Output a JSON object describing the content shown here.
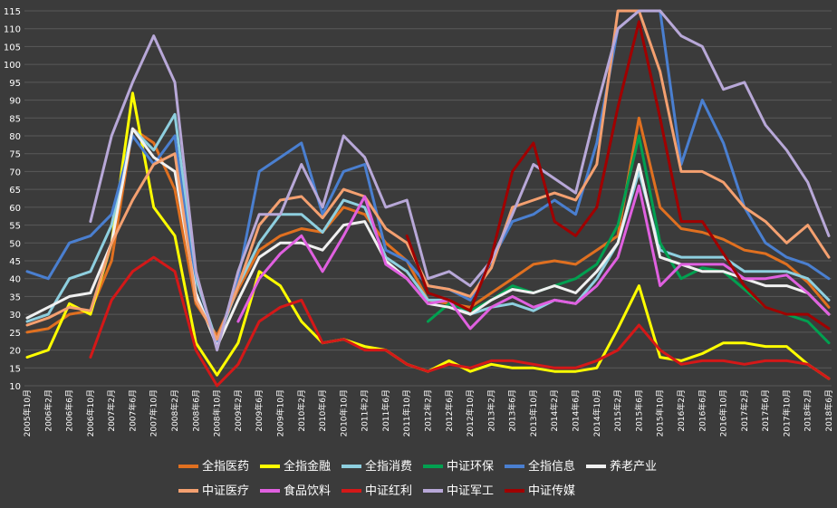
{
  "chart_data": {
    "type": "line",
    "title": "",
    "xlabel": "",
    "ylabel": "",
    "ylim": [
      10,
      115
    ],
    "yticks": [
      10,
      15,
      20,
      25,
      30,
      35,
      40,
      45,
      50,
      55,
      60,
      65,
      70,
      75,
      80,
      85,
      90,
      95,
      100,
      105,
      110,
      115
    ],
    "grid": true,
    "legend_position": "bottom",
    "categories": [
      "2005年10月",
      "2006年2月",
      "2006年6月",
      "2006年10月",
      "2007年2月",
      "2007年6月",
      "2007年10月",
      "2008年2月",
      "2008年6月",
      "2008年10月",
      "2009年2月",
      "2009年6月",
      "2009年10月",
      "2010年2月",
      "2010年6月",
      "2010年10月",
      "2011年2月",
      "2011年6月",
      "2011年10月",
      "2012年2月",
      "2012年6月",
      "2012年10月",
      "2013年2月",
      "2013年6月",
      "2013年10月",
      "2014年2月",
      "2014年6月",
      "2014年10月",
      "2015年2月",
      "2015年6月",
      "2015年10月",
      "2016年2月",
      "2016年6月",
      "2016年10月",
      "2017年2月",
      "2017年6月",
      "2017年10月",
      "2018年2月",
      "2018年6月"
    ],
    "series": [
      {
        "name": "全指医药",
        "color": "#e07020",
        "values": [
          null,
          null,
          null,
          null,
          null,
          null,
          null,
          null,
          null,
          null,
          null,
          null,
          null,
          null,
          null,
          null,
          null,
          null,
          null,
          null,
          null,
          null,
          null,
          null,
          null,
          null,
          null,
          null,
          null,
          null,
          null,
          null,
          null,
          null,
          null,
          null,
          null,
          null,
          null
        ],
        "values_lr": [
          25,
          26,
          30,
          31,
          45,
          82,
          78,
          65,
          33,
          24,
          37,
          48,
          52,
          54,
          53,
          60,
          58,
          50,
          45,
          34,
          33,
          32,
          36,
          40,
          44,
          45,
          44,
          48,
          52,
          85,
          60,
          54,
          53,
          51,
          48,
          47,
          44,
          39,
          32
        ]
      },
      {
        "name": "全指金融",
        "color": "#ffff00",
        "values": [
          18,
          20,
          33,
          30,
          50,
          92,
          60,
          52,
          22,
          13,
          22,
          42,
          38,
          28,
          22,
          23,
          21,
          20,
          16,
          14,
          17,
          14,
          16,
          15,
          15,
          14,
          14,
          15,
          26,
          38,
          18,
          17,
          19,
          22,
          22,
          21,
          21,
          16,
          12
        ]
      },
      {
        "name": "全指消费",
        "color": "#8ecfdf",
        "values": [
          28,
          30,
          40,
          42,
          55,
          82,
          76,
          86,
          40,
          22,
          38,
          50,
          58,
          58,
          53,
          62,
          60,
          46,
          42,
          34,
          34,
          30,
          32,
          33,
          31,
          34,
          33,
          40,
          50,
          70,
          48,
          46,
          46,
          46,
          42,
          42,
          42,
          40,
          34
        ]
      },
      {
        "name": "中证环保",
        "color": "#00a050",
        "values": [
          null,
          null,
          null,
          null,
          null,
          null,
          null,
          null,
          null,
          null,
          null,
          null,
          null,
          null,
          null,
          null,
          null,
          null,
          null,
          28,
          33,
          31,
          34,
          38,
          36,
          38,
          40,
          44,
          55,
          80,
          50,
          40,
          43,
          42,
          37,
          32,
          30,
          28,
          22
        ]
      },
      {
        "name": "全指信息",
        "color": "#4a7fd0",
        "values": [
          42,
          40,
          50,
          52,
          58,
          80,
          72,
          80,
          36,
          22,
          40,
          70,
          74,
          78,
          58,
          70,
          72,
          48,
          45,
          38,
          37,
          34,
          45,
          56,
          58,
          62,
          58,
          78,
          110,
          115,
          115,
          72,
          90,
          78,
          60,
          50,
          46,
          44,
          40
        ]
      },
      {
        "name": "养老产业",
        "color": "#f0f0f0",
        "values": [
          29,
          32,
          35,
          36,
          50,
          82,
          74,
          70,
          36,
          21,
          34,
          46,
          50,
          50,
          48,
          55,
          56,
          45,
          40,
          33,
          32,
          30,
          34,
          37,
          36,
          38,
          36,
          42,
          50,
          72,
          46,
          44,
          42,
          42,
          40,
          38,
          38,
          36,
          30
        ]
      },
      {
        "name": "中证医疗",
        "color": "#f4a070",
        "values": [
          null,
          null,
          null,
          null,
          null,
          null,
          null,
          null,
          null,
          null,
          null,
          null,
          null,
          null,
          null,
          null,
          null,
          null,
          null,
          null,
          null,
          null,
          null,
          null,
          null,
          null,
          null,
          null,
          null,
          null,
          null,
          null,
          null,
          null,
          null,
          null,
          null,
          null,
          null
        ],
        "values_lr": [
          27,
          29,
          32,
          31,
          50,
          62,
          72,
          75,
          34,
          23,
          38,
          55,
          62,
          63,
          57,
          65,
          63,
          54,
          50,
          38,
          37,
          35,
          43,
          60,
          62,
          64,
          62,
          72,
          115,
          115,
          98,
          70,
          70,
          67,
          60,
          56,
          50,
          55,
          46
        ]
      },
      {
        "name": "食品饮料",
        "color": "#e060e0",
        "values": [
          null,
          null,
          null,
          null,
          null,
          null,
          null,
          null,
          null,
          null,
          28,
          40,
          47,
          52,
          42,
          52,
          63,
          44,
          40,
          33,
          34,
          26,
          32,
          35,
          32,
          34,
          33,
          38,
          46,
          66,
          38,
          44,
          44,
          44,
          40,
          40,
          41,
          36,
          30
        ]
      },
      {
        "name": "中证红利",
        "color": "#d41818",
        "values": [
          null,
          null,
          null,
          18,
          34,
          42,
          46,
          42,
          20,
          10,
          16,
          28,
          32,
          34,
          22,
          23,
          20,
          20,
          16,
          14,
          16,
          15,
          17,
          17,
          16,
          15,
          15,
          17,
          20,
          27,
          20,
          16,
          17,
          17,
          16,
          17,
          17,
          16,
          12
        ]
      },
      {
        "name": "中证军工",
        "color": "#b8a8d8",
        "values": [
          null,
          null,
          null,
          56,
          80,
          95,
          108,
          95,
          42,
          20,
          42,
          58,
          58,
          72,
          60,
          80,
          74,
          60,
          62,
          40,
          42,
          38,
          45,
          58,
          72,
          68,
          64,
          88,
          110,
          115,
          115,
          108,
          105,
          93,
          95,
          83,
          76,
          67,
          52
        ]
      },
      {
        "name": "中证传媒",
        "color": "#a00000",
        "values": [
          null,
          null,
          null,
          null,
          null,
          null,
          null,
          null,
          null,
          null,
          null,
          null,
          null,
          null,
          null,
          null,
          null,
          null,
          52,
          36,
          34,
          31,
          46,
          70,
          78,
          56,
          52,
          60,
          88,
          112,
          85,
          56,
          56,
          47,
          38,
          32,
          30,
          30,
          26
        ]
      }
    ]
  },
  "legend": [
    {
      "label": "全指医药",
      "color": "#e07020"
    },
    {
      "label": "全指金融",
      "color": "#ffff00"
    },
    {
      "label": "全指消费",
      "color": "#8ecfdf"
    },
    {
      "label": "中证环保",
      "color": "#00a050"
    },
    {
      "label": "全指信息",
      "color": "#4a7fd0"
    },
    {
      "label": "养老产业",
      "color": "#f0f0f0"
    },
    {
      "label": "中证医疗",
      "color": "#f4a070"
    },
    {
      "label": "食品饮料",
      "color": "#e060e0"
    },
    {
      "label": "中证红利",
      "color": "#d41818"
    },
    {
      "label": "中证军工",
      "color": "#b8a8d8"
    },
    {
      "label": "中证传媒",
      "color": "#a00000"
    }
  ]
}
